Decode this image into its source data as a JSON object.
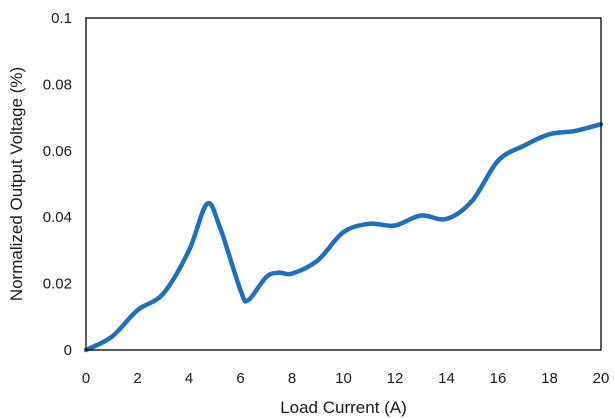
{
  "chart_data": {
    "type": "line",
    "title": "",
    "xlabel": "Load Current (A)",
    "ylabel": "Normalized Output Voltage (%)",
    "xlim": [
      0,
      20
    ],
    "ylim": [
      0,
      0.1
    ],
    "x_ticks": [
      0,
      2,
      4,
      6,
      8,
      10,
      12,
      14,
      16,
      18,
      20
    ],
    "y_ticks": [
      0,
      0.02,
      0.04,
      0.06,
      0.08,
      0.1
    ],
    "x_tick_labels": [
      "0",
      "2",
      "4",
      "6",
      "8",
      "10",
      "12",
      "14",
      "16",
      "18",
      "20"
    ],
    "y_tick_labels": [
      "0",
      "0.02",
      "0.04",
      "0.06",
      "0.08",
      "0.1"
    ],
    "grid": false,
    "legend": "none",
    "line_color": "#1f6fbf",
    "series": [
      {
        "x": [
          0,
          1,
          2,
          3,
          4,
          4.7,
          5.2,
          6,
          6.3,
          7,
          7.5,
          8,
          9,
          10,
          11,
          12,
          13,
          14,
          15,
          16,
          17,
          18,
          19,
          20
        ],
        "values": [
          0,
          0.004,
          0.012,
          0.017,
          0.03,
          0.044,
          0.037,
          0.018,
          0.015,
          0.022,
          0.0233,
          0.023,
          0.027,
          0.0355,
          0.038,
          0.0375,
          0.0405,
          0.0395,
          0.045,
          0.057,
          0.0615,
          0.065,
          0.066,
          0.068
        ]
      }
    ]
  }
}
